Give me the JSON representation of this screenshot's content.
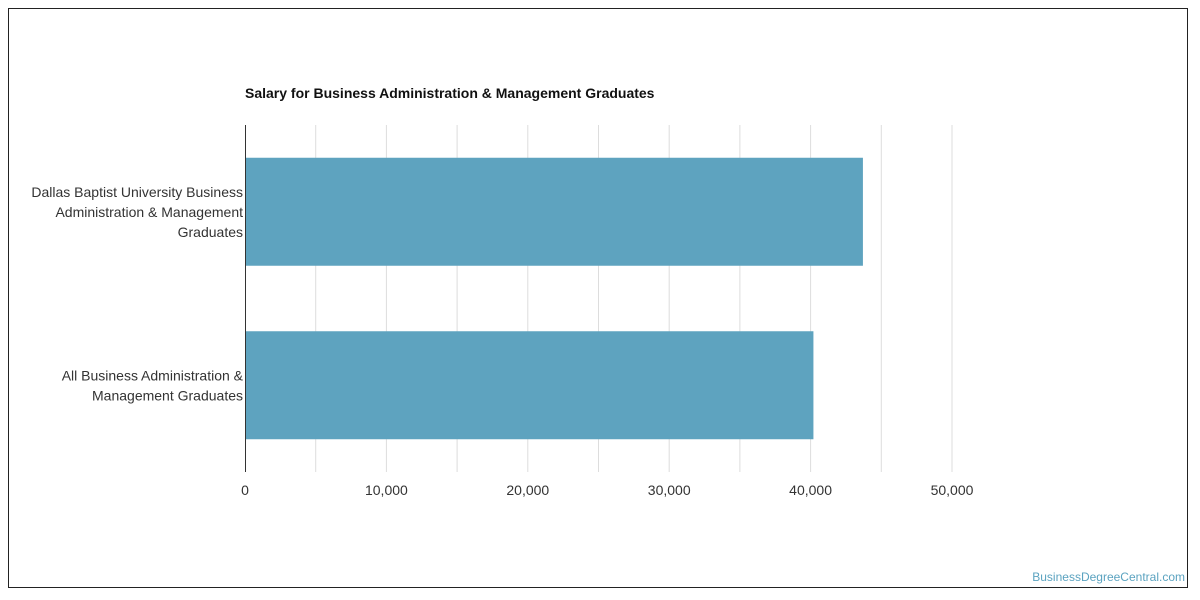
{
  "chart_data": {
    "type": "bar",
    "orientation": "horizontal",
    "title": "Salary for Business Administration & Management Graduates",
    "categories": [
      "Dallas Baptist University Business Administration & Management Graduates",
      "All Business Administration & Management Graduates"
    ],
    "category_label_lines": [
      [
        "Dallas Baptist University Business",
        "Administration & Management",
        "Graduates"
      ],
      [
        "All Business Administration &",
        "Management Graduates"
      ]
    ],
    "values": [
      43700,
      40200
    ],
    "xlim": [
      0,
      50000
    ],
    "xticks": [
      0,
      10000,
      20000,
      30000,
      40000,
      50000
    ],
    "xtick_labels": [
      "0",
      "10,000",
      "20,000",
      "30,000",
      "40,000",
      "50,000"
    ],
    "grid": true,
    "bar_color": "#5ea3bf",
    "grid_color": "#dddddd"
  },
  "watermark": "BusinessDegreeCentral.com"
}
